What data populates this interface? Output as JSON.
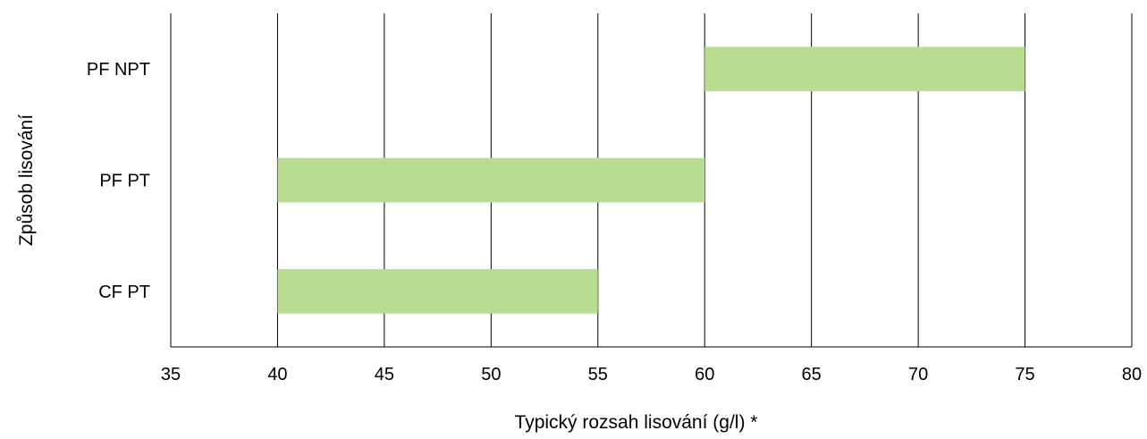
{
  "chart_data": {
    "type": "bar",
    "orientation": "horizontal",
    "bar_style": "floating-range",
    "title": "",
    "xlabel": "Typický rozsah lisování (g/l) *",
    "ylabel": "Způsob lisování",
    "xlim": [
      35,
      80
    ],
    "xticks": [
      35,
      40,
      45,
      50,
      55,
      60,
      65,
      70,
      75,
      80
    ],
    "grid": {
      "vertical": true,
      "horizontal": false
    },
    "legend": "none",
    "bar_color": "#b9de91",
    "categories": [
      "PF NPT",
      "PF PT",
      "CF PT"
    ],
    "ranges": [
      {
        "category": "PF NPT",
        "start": 60,
        "end": 75
      },
      {
        "category": "PF PT",
        "start": 40,
        "end": 60
      },
      {
        "category": "CF PT",
        "start": 40,
        "end": 55
      }
    ]
  }
}
